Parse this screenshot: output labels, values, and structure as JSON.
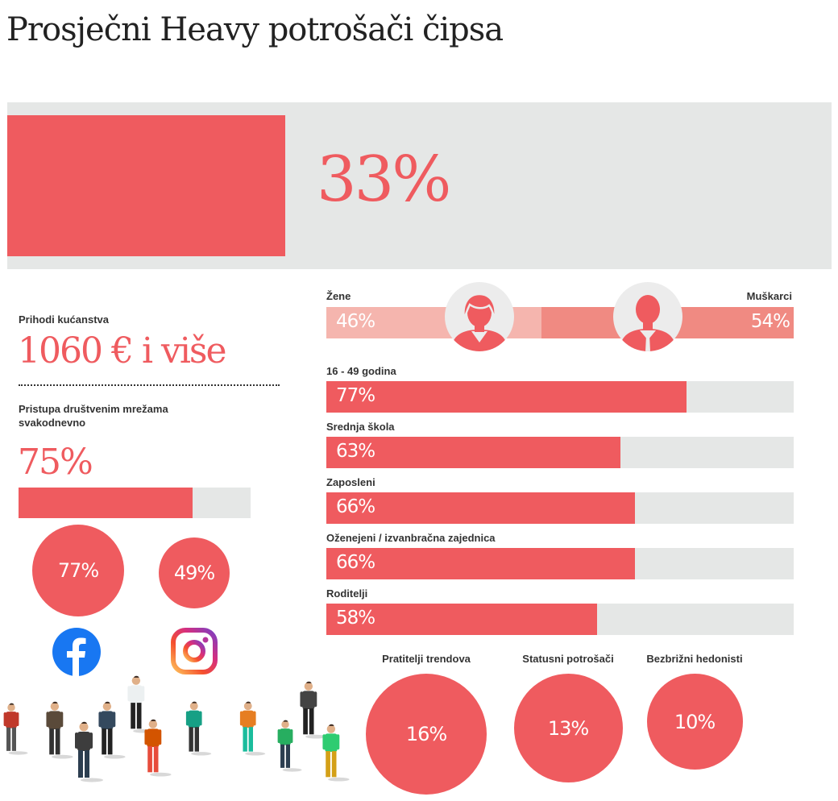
{
  "title": "Prosječni Heavy potrošači čipsa",
  "headline": {
    "value": "33%",
    "fraction": 0.33
  },
  "income": {
    "label": "Prihodi kućanstva",
    "value": "1060 € i više"
  },
  "social": {
    "label": "Pristupa društvenim mrežama svakodnevno",
    "value": "75%",
    "fraction": 0.75,
    "facebook": {
      "value": "77%",
      "icon": "facebook-icon"
    },
    "instagram": {
      "value": "49%",
      "icon": "instagram-icon"
    }
  },
  "gender": {
    "female_label": "Žene",
    "female_value": "46%",
    "female_fraction": 0.46,
    "male_label": "Muškarci",
    "male_value": "54%",
    "male_fraction": 0.54,
    "female_icon": "woman-avatar-icon",
    "male_icon": "man-avatar-icon"
  },
  "colors": {
    "accent": "#ef5b5f",
    "female": "#f5b5ae",
    "male": "#f08a82",
    "panel": "#e5e7e6",
    "facebook": "#1877f2"
  },
  "chart_data": [
    {
      "type": "bar",
      "categories": [
        "16 - 49 godina",
        "Srednja škola",
        "Zaposleni",
        "Oženejeni / izvanbračna zajednica",
        "Roditelji"
      ],
      "values": [
        77,
        63,
        66,
        66,
        58
      ],
      "labels": [
        "77%",
        "63%",
        "66%",
        "66%",
        "58%"
      ],
      "ylim": [
        0,
        100
      ]
    },
    {
      "type": "bubble",
      "categories": [
        "Pratitelji trendova",
        "Statusni potrošači",
        "Bezbrižni hedonisti"
      ],
      "values": [
        16,
        13,
        10
      ],
      "labels": [
        "16%",
        "13%",
        "10%"
      ]
    }
  ]
}
